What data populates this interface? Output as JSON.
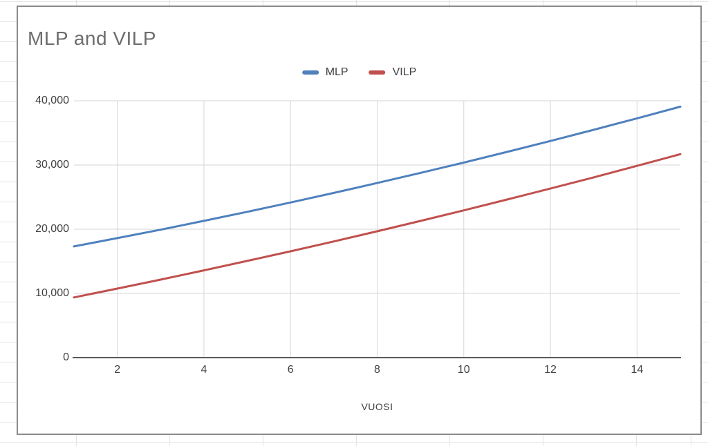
{
  "chart_data": {
    "type": "line",
    "title": "MLP and VILP",
    "xlabel": "VUOSI",
    "ylabel": "",
    "x": [
      1,
      2,
      3,
      4,
      5,
      6,
      7,
      8,
      9,
      10,
      11,
      12,
      13,
      14,
      15
    ],
    "series": [
      {
        "name": "MLP",
        "color": "#4F81BD",
        "values": [
          17320,
          18610,
          19930,
          21300,
          22710,
          24160,
          25660,
          27190,
          28770,
          30380,
          32040,
          33740,
          35480,
          37270,
          39090
        ]
      },
      {
        "name": "VILP",
        "color": "#C0504D",
        "values": [
          9380,
          10750,
          12150,
          13590,
          15060,
          16560,
          18100,
          19680,
          21290,
          22940,
          24620,
          26330,
          28080,
          29870,
          31690
        ]
      }
    ],
    "xlim": [
      1,
      15
    ],
    "ylim": [
      0,
      40000
    ],
    "x_ticks": [
      2,
      4,
      6,
      8,
      10,
      12,
      14
    ],
    "x_tick_labels": [
      "2",
      "4",
      "6",
      "8",
      "10",
      "12",
      "14"
    ],
    "y_ticks": [
      0,
      10000,
      20000,
      30000,
      40000
    ],
    "y_tick_labels": [
      "0",
      "10,000",
      "20,000",
      "30,000",
      "40,000"
    ],
    "grid": true,
    "legend_position": "top-center",
    "colors": {
      "gridline": "#d6d6d6",
      "axis_line": "#595959",
      "title_text": "#6d6d6d",
      "tick_text": "#404040",
      "chart_border": "#8b8b8b"
    }
  }
}
